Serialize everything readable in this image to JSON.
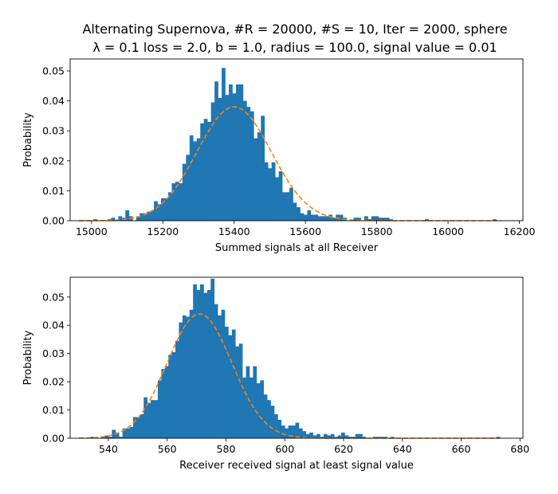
{
  "chart_data": [
    {
      "type": "histogram",
      "title_line1": "Alternating Supernova, #R = 20000, #S = 10, Iter = 2000, sphere",
      "title_line2": "λ = 0.1 loss = 2.0, b = 1.0, radius = 100.0, signal value = 0.01",
      "xlabel": "Summed signals at all Receiver",
      "ylabel": "Probability",
      "xlim": [
        14940,
        16210
      ],
      "ylim": [
        0,
        0.054
      ],
      "xticks": [
        15000,
        15200,
        15400,
        15600,
        15800,
        16000,
        16200
      ],
      "yticks": [
        0.0,
        0.01,
        0.02,
        0.03,
        0.04,
        0.05
      ],
      "ytick_labels": [
        "0.00",
        "0.01",
        "0.02",
        "0.03",
        "0.04",
        "0.05"
      ],
      "bin_start": 15005,
      "bin_width": 10,
      "values": [
        0.0005,
        0,
        0,
        0,
        0.0005,
        0.001,
        0,
        0.0015,
        0.001,
        0.0035,
        0.0015,
        0,
        0.0015,
        0.0025,
        0.0025,
        0.003,
        0.0035,
        0.0065,
        0.0055,
        0.0075,
        0.0075,
        0.0095,
        0.0125,
        0.013,
        0.0125,
        0.019,
        0.022,
        0.0285,
        0.0265,
        0.0275,
        0.0325,
        0.034,
        0.033,
        0.0395,
        0.0465,
        0.041,
        0.051,
        0.042,
        0.0455,
        0.0425,
        0.0455,
        0.0455,
        0.04,
        0.038,
        0.0365,
        0.0275,
        0.0295,
        0.035,
        0.0195,
        0.0175,
        0.0195,
        0.0145,
        0.0165,
        0.0095,
        0.0095,
        0.011,
        0.006,
        0.0045,
        0.0025,
        0.002,
        0.0035,
        0.002,
        0.002,
        0.0015,
        0.0015,
        0.0015,
        0.002,
        0.001,
        0.002,
        0.002,
        0.001,
        0,
        0,
        0.001,
        0.001,
        0,
        0.0015,
        0.0005,
        0.0015,
        0.0015,
        0.001,
        0.001,
        0.001,
        0.0005,
        0,
        0,
        0,
        0,
        0,
        0,
        0,
        0,
        0,
        0.0005,
        0,
        0,
        0,
        0,
        0,
        0,
        0,
        0,
        0,
        0,
        0,
        0,
        0,
        0,
        0,
        0,
        0,
        0,
        0.0005
      ],
      "fit": {
        "mean": 15400,
        "std": 104,
        "peak": 0.038,
        "x_start": 14965,
        "x_end": 16150
      },
      "bar_color": "#1f77b4",
      "fit_color": "#ff7f0e"
    },
    {
      "type": "histogram",
      "xlabel": "Receiver received signal at least signal value",
      "ylabel": "Probability",
      "xlim": [
        527,
        681
      ],
      "ylim": [
        0,
        0.057
      ],
      "xticks": [
        540,
        560,
        580,
        600,
        620,
        640,
        660,
        680
      ],
      "yticks": [
        0.0,
        0.01,
        0.02,
        0.03,
        0.04,
        0.05
      ],
      "ytick_labels": [
        "0.00",
        "0.01",
        "0.02",
        "0.03",
        "0.04",
        "0.05"
      ],
      "bin_start": 534,
      "bin_width": 1.2,
      "values": [
        0.0005,
        0,
        0,
        0.0005,
        0.001,
        0.0005,
        0.003,
        0.002,
        0.0005,
        0.0035,
        0.0035,
        0.004,
        0.0075,
        0.0075,
        0.0085,
        0.0145,
        0.0125,
        0.0135,
        0.0135,
        0.0205,
        0.0245,
        0.0255,
        0.0295,
        0.0305,
        0.0345,
        0.041,
        0.0435,
        0.043,
        0.0455,
        0.0545,
        0.0525,
        0.0545,
        0.0515,
        0.0525,
        0.0565,
        0.0475,
        0.0435,
        0.0455,
        0.0395,
        0.0365,
        0.0385,
        0.0325,
        0.0335,
        0.0215,
        0.0255,
        0.0215,
        0.0255,
        0.0195,
        0.0205,
        0.0155,
        0.0135,
        0.0115,
        0.0085,
        0.0065,
        0.0045,
        0.0035,
        0.0045,
        0.0045,
        0.0055,
        0.0035,
        0.0025,
        0.0015,
        0.002,
        0.001,
        0.0015,
        0.0005,
        0.0015,
        0.001,
        0.0015,
        0.0005,
        0.001,
        0.002,
        0.001,
        0.0005,
        0.0005,
        0.0015,
        0.0015,
        0.0005,
        0,
        0,
        0.0005,
        0.0005,
        0.0005,
        0.0005,
        0,
        0.0005,
        0,
        0,
        0,
        0,
        0,
        0,
        0,
        0,
        0,
        0,
        0,
        0,
        0,
        0,
        0,
        0,
        0,
        0,
        0,
        0,
        0,
        0,
        0,
        0,
        0,
        0,
        0,
        0,
        0,
        0.0005
      ],
      "fit": {
        "mean": 571,
        "std": 11,
        "peak": 0.044,
        "x_start": 530,
        "x_end": 673
      },
      "bar_color": "#1f77b4",
      "fit_color": "#ff7f0e"
    }
  ]
}
